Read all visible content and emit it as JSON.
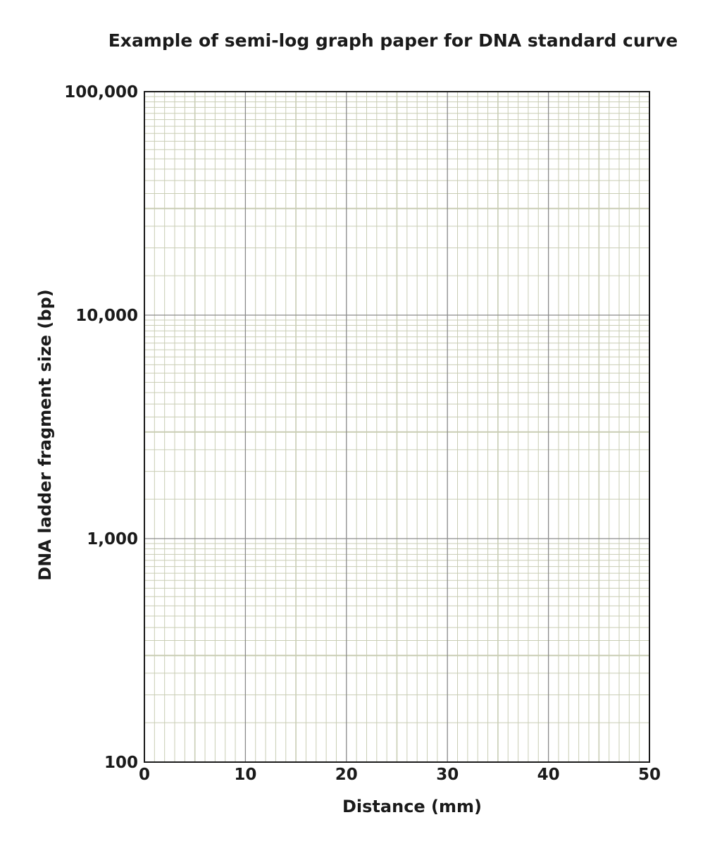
{
  "chart_data": {
    "type": "scatter",
    "title": "Example of semi-log graph paper for DNA standard curve",
    "xlabel": "Distance (mm)",
    "ylabel": "DNA ladder fragment size (bp)",
    "xlim": [
      0,
      50
    ],
    "ylim": [
      100,
      100000
    ],
    "y_scale": "log",
    "x_ticks": [
      "0",
      "10",
      "20",
      "30",
      "40",
      "50"
    ],
    "y_ticks": [
      "100",
      "1,000",
      "10,000",
      "100,000"
    ],
    "grid": true,
    "series": [],
    "colors": {
      "major_grid": "#8a8a8a",
      "minor_grid": "#c9cdb4",
      "frame": "#1a1a1a"
    }
  }
}
